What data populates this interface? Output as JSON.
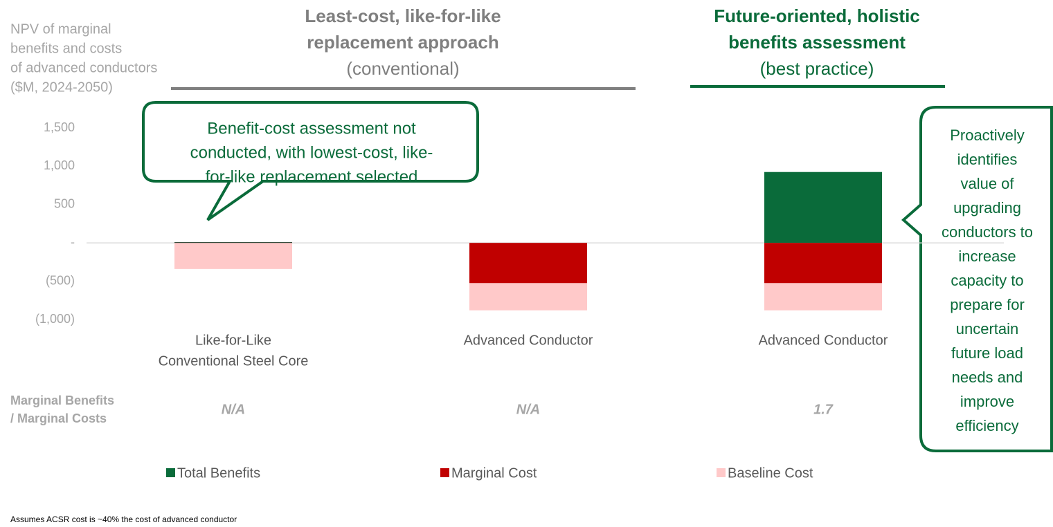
{
  "chart_data": {
    "type": "stacked_bar",
    "ylabel": [
      "NPV of marginal",
      "benefits and costs",
      "of advanced conductors",
      "($M, 2024-2050)"
    ],
    "headers": [
      {
        "lines": [
          "Least-cost, like-for-like",
          "replacement approach"
        ],
        "note": "(conventional)",
        "color": "#7f7f7f"
      },
      {
        "lines": [
          "Future-oriented, holistic",
          "benefits assessment"
        ],
        "note": "(best practice)",
        "color": "#0a6b3a"
      }
    ],
    "categories": [
      [
        "Like-for-Like",
        "Conventional Steel Core"
      ],
      [
        "Advanced Conductor"
      ],
      [
        "Advanced Conductor"
      ]
    ],
    "series": [
      {
        "name": "Total Benefits",
        "color": "#0a6b3a",
        "values": [
          10,
          0,
          925
        ]
      },
      {
        "name": "Marginal Cost",
        "color": "#c00000",
        "values": [
          0,
          -525,
          -525
        ]
      },
      {
        "name": "Baseline Cost",
        "color": "#ffc9c9",
        "values": [
          -340,
          -355,
          -355
        ]
      }
    ],
    "ylim": [
      -1000,
      1500
    ],
    "yticks": [
      {
        "value": 1500,
        "label": "1,500"
      },
      {
        "value": 1000,
        "label": "1,000"
      },
      500,
      {
        "value": 0,
        "label": "-"
      },
      {
        "value": -500,
        "label": "(500)"
      },
      {
        "value": -1000,
        "label": "(1,000)"
      }
    ],
    "ratio_label": [
      "Marginal Benefits",
      "/ Marginal Costs"
    ],
    "ratio_values": [
      "N/A",
      "N/A",
      "1.7"
    ],
    "callouts": [
      [
        "Benefit-cost assessment not",
        "conducted, with lowest-cost, like-",
        "for-like replacement selected"
      ],
      [
        "Proactively",
        "identifies",
        "value of",
        "upgrading",
        "conductors to",
        "increase",
        "capacity to",
        "prepare for",
        "uncertain",
        "future load",
        "needs and",
        "improve",
        "efficiency"
      ]
    ],
    "footnote": "Assumes ACSR cost is ~40% the cost of advanced conductor"
  }
}
